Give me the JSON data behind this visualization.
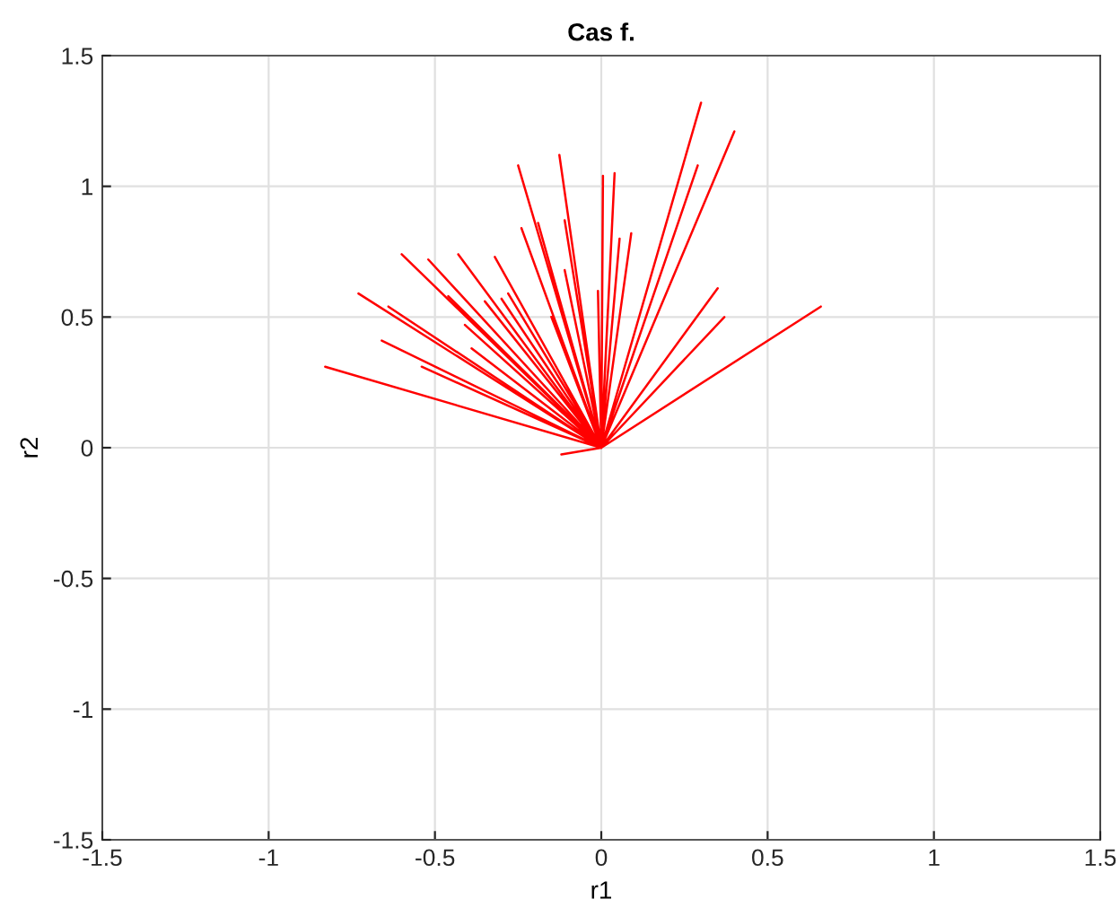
{
  "chart_data": {
    "type": "line",
    "title": "Cas f.",
    "xlabel": "r1",
    "ylabel": "r2",
    "series": [
      {
        "color": "#ff0000",
        "x": [
          0,
          0.3,
          0,
          0.4,
          0,
          0.29,
          0,
          0.35,
          0,
          0.37,
          0,
          0.66,
          0,
          0.09,
          0,
          0.055,
          0,
          0.04,
          0,
          0.005,
          0,
          -0.01,
          0,
          0.02,
          0,
          -0.126,
          0,
          -0.25,
          0,
          -0.11,
          0,
          -0.24,
          0,
          -0.19,
          0,
          -0.11,
          0,
          -0.6,
          0,
          -0.52,
          0,
          -0.43,
          0,
          -0.32,
          0,
          -0.73,
          0,
          -0.64,
          0,
          -0.46,
          0,
          -0.35,
          0,
          -0.3,
          0,
          -0.28,
          0,
          -0.66,
          0,
          -0.83,
          0,
          -0.54,
          0,
          -0.41,
          0,
          -0.39,
          0,
          -0.12,
          0,
          -0.15
        ],
        "values": [
          0,
          1.32,
          0,
          1.21,
          0,
          1.08,
          0,
          0.61,
          0,
          0.5,
          0,
          0.54,
          0,
          0.82,
          0,
          0.8,
          0,
          1.05,
          0,
          1.04,
          0,
          0.6,
          0,
          0.53,
          0,
          1.12,
          0,
          1.08,
          0,
          0.87,
          0,
          0.84,
          0,
          0.86,
          0,
          0.68,
          0,
          0.74,
          0,
          0.72,
          0,
          0.74,
          0,
          0.73,
          0,
          0.59,
          0,
          0.54,
          0,
          0.58,
          0,
          0.56,
          0,
          0.57,
          0,
          0.59,
          0,
          0.41,
          0,
          0.31,
          0,
          0.31,
          0,
          0.47,
          0,
          0.38,
          0,
          -0.026,
          0,
          0.5
        ]
      }
    ],
    "xlim": [
      -1.5,
      1.5
    ],
    "ylim": [
      -1.5,
      1.5
    ],
    "xticks": [
      -1.5,
      -1,
      -0.5,
      0,
      0.5,
      1,
      1.5
    ],
    "yticks": [
      -1.5,
      -1,
      -0.5,
      0,
      0.5,
      1,
      1.5
    ],
    "grid": true
  }
}
